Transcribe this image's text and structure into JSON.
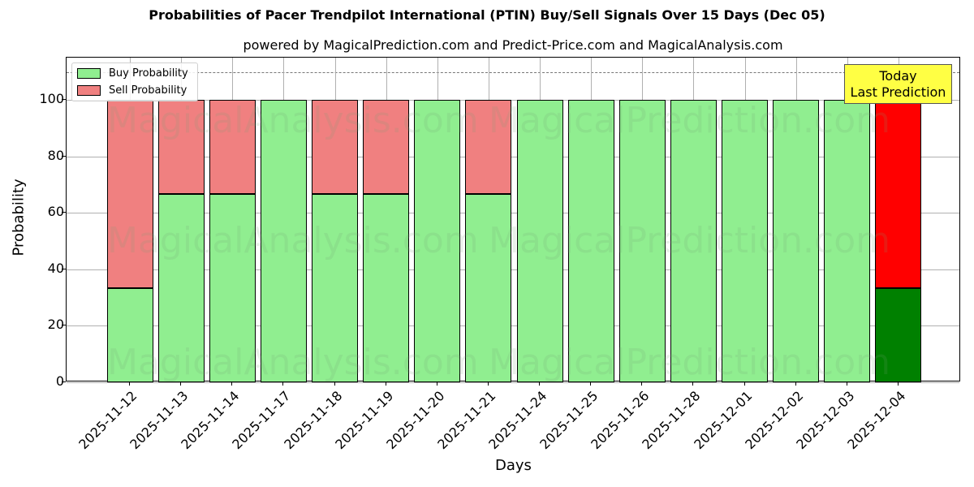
{
  "chart_data": {
    "type": "bar",
    "stacked": true,
    "title": "Probabilities of Pacer Trendpilot International  (PTIN) Buy/Sell Signals Over 15 Days (Dec 05)",
    "subtitle": "powered by MagicalPrediction.com and Predict-Price.com and MagicalAnalysis.com",
    "xlabel": "Days",
    "ylabel": "Probability",
    "ylim": [
      0,
      115
    ],
    "yticks": [
      0,
      20,
      40,
      60,
      80,
      100
    ],
    "grid": true,
    "legend_position": "upper left",
    "reference_line": {
      "y": 110,
      "style": "dashed",
      "color": "#777777"
    },
    "categories": [
      "2025-11-12",
      "2025-11-13",
      "2025-11-14",
      "2025-11-17",
      "2025-11-18",
      "2025-11-19",
      "2025-11-20",
      "2025-11-21",
      "2025-11-24",
      "2025-11-25",
      "2025-11-26",
      "2025-11-28",
      "2025-12-01",
      "2025-12-02",
      "2025-12-03",
      "2025-12-04"
    ],
    "series": [
      {
        "name": "Buy Probability",
        "color": "#90ee90",
        "values": [
          33.33,
          66.67,
          66.67,
          100,
          66.67,
          66.67,
          100,
          66.67,
          100,
          100,
          100,
          100,
          100,
          100,
          100,
          33.33
        ]
      },
      {
        "name": "Sell Probability",
        "color": "#f08080",
        "values": [
          66.67,
          33.33,
          33.33,
          0,
          33.33,
          33.33,
          0,
          33.33,
          0,
          0,
          0,
          0,
          0,
          0,
          0,
          66.67
        ]
      }
    ],
    "highlight": {
      "index": 15,
      "buy_color": "#008000",
      "sell_color": "#ff0000"
    },
    "annotations": [
      {
        "text": "Today\nLast Prediction",
        "line1": "Today",
        "line2": "Last Prediction",
        "background": "#ffff44"
      }
    ],
    "watermarks": [
      "MagicalAnalysis.com",
      "MagicalPrediction.com"
    ]
  }
}
